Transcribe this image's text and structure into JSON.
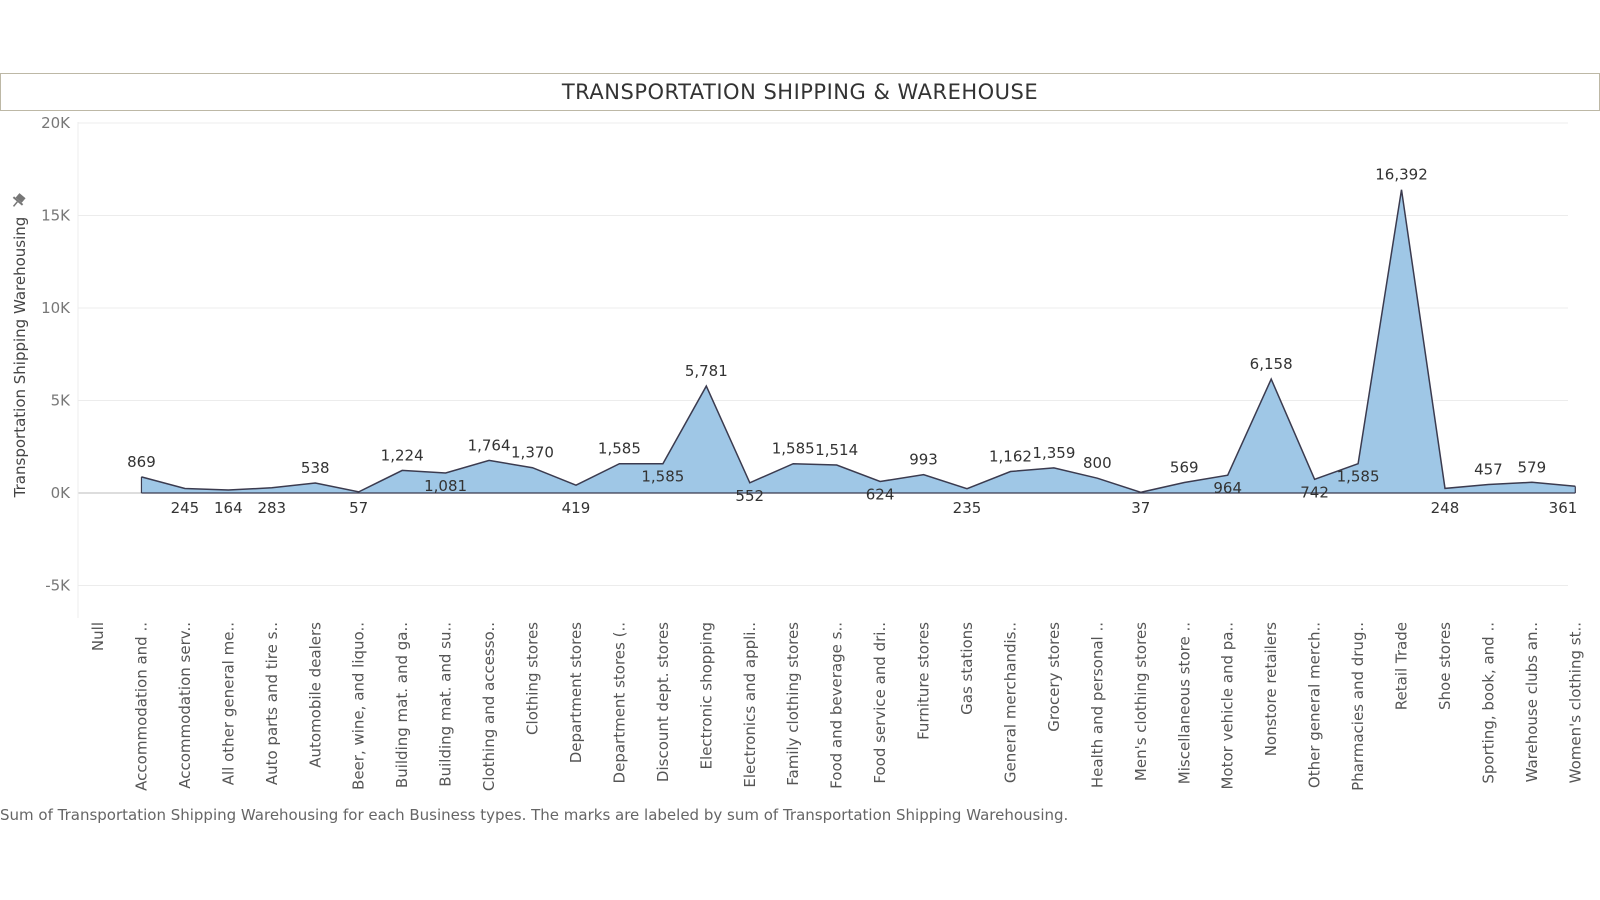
{
  "chart_data": {
    "type": "area",
    "title": "TRANSPORTATION SHIPPING & WAREHOUSE",
    "ylabel": "Transportation Shipping Warehousing",
    "xlabel": "",
    "ylim": [
      -6700,
      20500
    ],
    "yticks": [
      -5000,
      0,
      5000,
      10000,
      15000,
      20000
    ],
    "ytick_labels": [
      "-5K",
      "0K",
      "5K",
      "10K",
      "15K",
      "20K"
    ],
    "grid": true,
    "fill_color": "#9fc7e6",
    "line_color": "#3b3b4f",
    "categories": [
      "Null",
      "Accommodation and ..",
      "Accommodation serv..",
      "All other general me..",
      "Auto parts and tire s..",
      "Automobile dealers",
      "Beer, wine, and liquo..",
      "Building mat. and ga..",
      "Building mat. and su..",
      "Clothing and accesso..",
      "Clothing stores",
      "Department stores",
      "Department stores (..",
      "Discount dept. stores",
      "Electronic shopping",
      "Electronics and appli..",
      "Family clothing stores",
      "Food and beverage s..",
      "Food service and dri..",
      "Furniture stores",
      "Gas stations",
      "General merchandis..",
      "Grocery stores",
      "Health and personal ..",
      "Men's clothing stores",
      "Miscellaneous store ..",
      "Motor vehicle and pa..",
      "Nonstore retailers",
      "Other general merch..",
      "Pharmacies and drug..",
      "Retail Trade",
      "Shoe stores",
      "Sporting, book, and ..",
      "Warehouse clubs an..",
      "Women's clothing st.."
    ],
    "series": [
      {
        "values": [
          null,
          869,
          245,
          164,
          283,
          538,
          57,
          1224,
          1081,
          1764,
          1370,
          419,
          1585,
          1585,
          5781,
          552,
          1585,
          1514,
          624,
          993,
          235,
          1162,
          1359,
          800,
          37,
          569,
          964,
          6158,
          742,
          1585,
          16392,
          248,
          457,
          579,
          361
        ],
        "labels": [
          "",
          "869",
          "245",
          "164",
          "283",
          "538",
          "57",
          "1,224",
          "1,081",
          "1,764",
          "1,370",
          "419",
          "1,585",
          "1,585",
          "5,781",
          "552",
          "1,585",
          "1,514",
          "624",
          "993",
          "235",
          "1,162",
          "1,359",
          "800",
          "37",
          "569",
          "964",
          "6,158",
          "742",
          "1,585",
          "16,392",
          "248",
          "457",
          "579",
          "361"
        ],
        "label_pos": [
          "",
          "above",
          "below",
          "below",
          "below",
          "above",
          "below",
          "above",
          "below",
          "above",
          "above",
          "below",
          "above",
          "below",
          "above",
          "below",
          "above",
          "above",
          "below",
          "above",
          "below",
          "above",
          "above",
          "above",
          "below",
          "above",
          "below",
          "above",
          "below",
          "below",
          "above",
          "below",
          "above",
          "above",
          "below"
        ]
      }
    ]
  },
  "caption": "Sum of Transportation Shipping Warehousing for each Business types.  The marks are labeled by sum of Transportation Shipping Warehousing."
}
